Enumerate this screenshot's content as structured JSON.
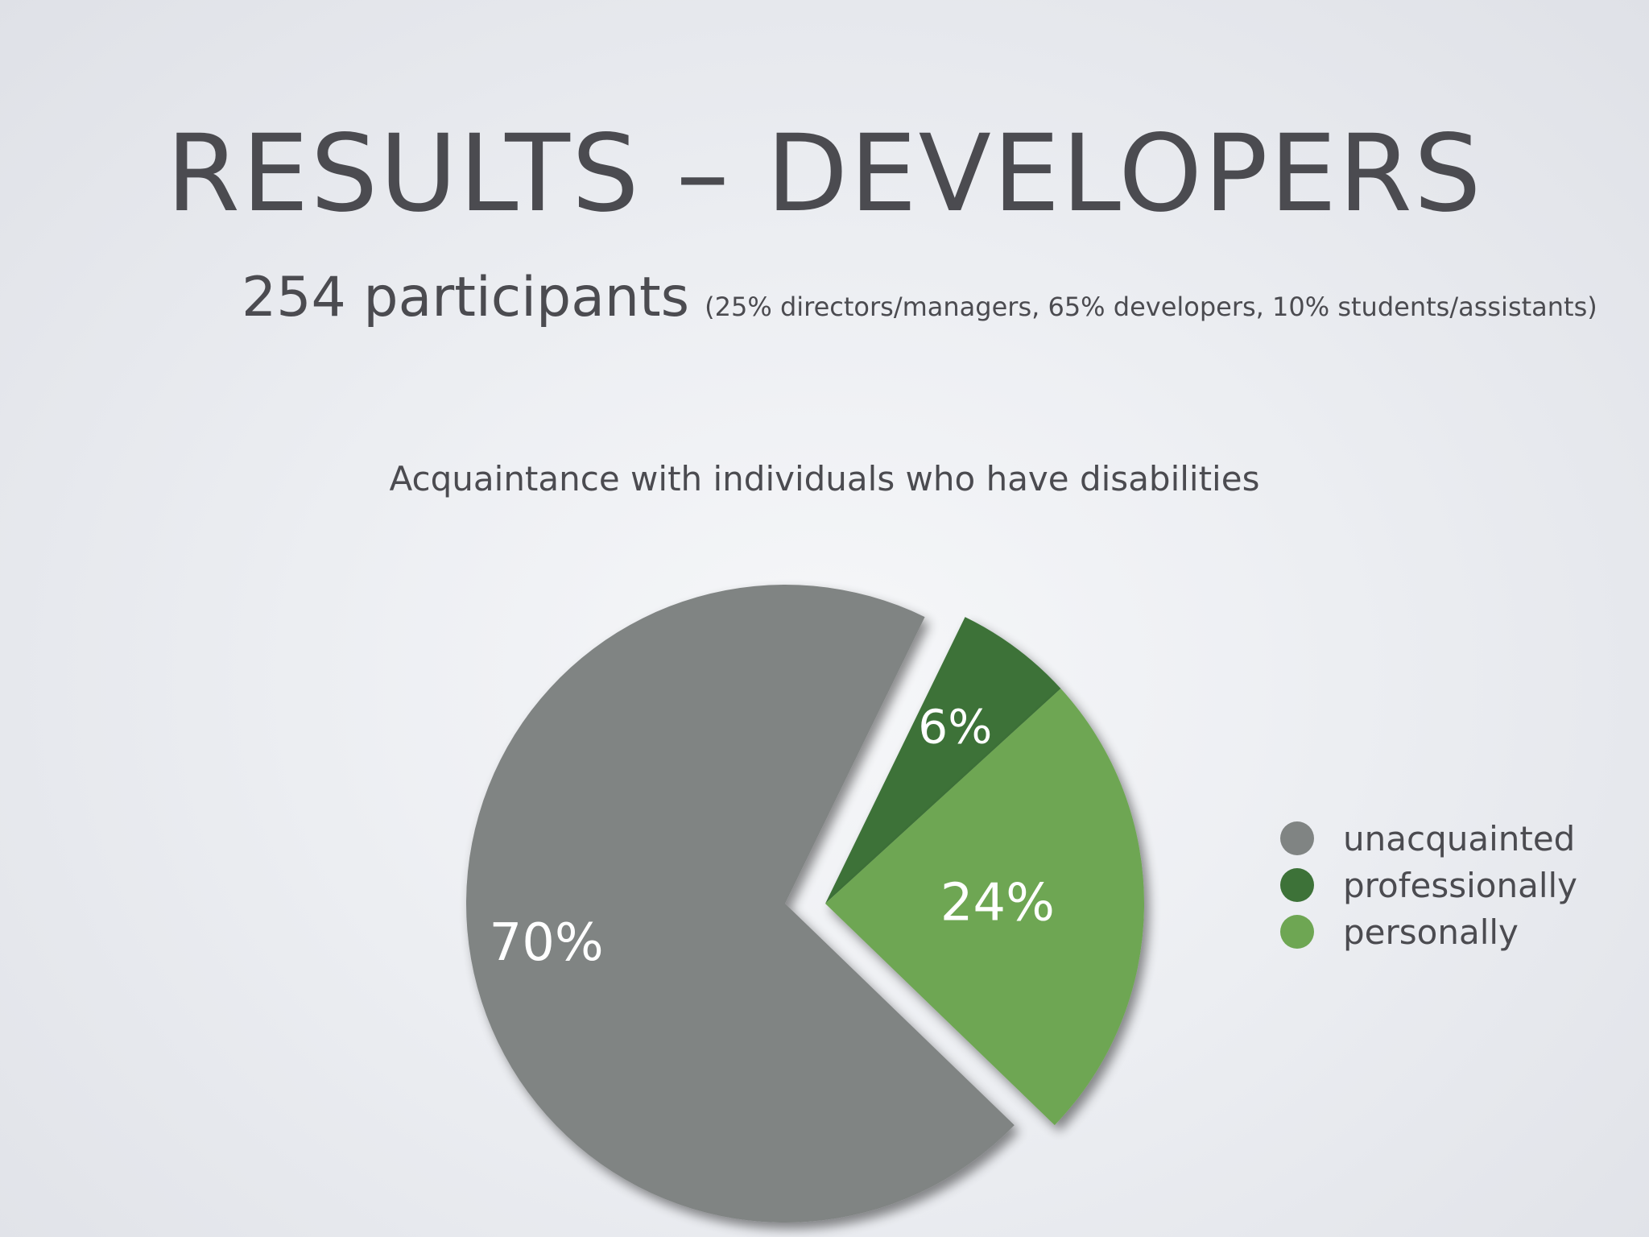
{
  "slide": {
    "title": "RESULTS – DEVELOPERS",
    "subtitle_main": "254 participants",
    "subtitle_detail": "(25% directors/managers, 65% developers, 10% students/assistants)"
  },
  "chart_data": {
    "type": "pie",
    "title": "Acquaintance with individuals who have disabilities",
    "slices": [
      {
        "name": "unacquainted",
        "value": 70,
        "label": "70%",
        "color": "#808483"
      },
      {
        "name": "professionally",
        "value": 6,
        "label": "6%",
        "color": "#3d7238"
      },
      {
        "name": "personally",
        "value": 24,
        "label": "24%",
        "color": "#6ea653"
      }
    ],
    "legend_position": "right",
    "exploded": [
      "professionally",
      "personally"
    ]
  }
}
